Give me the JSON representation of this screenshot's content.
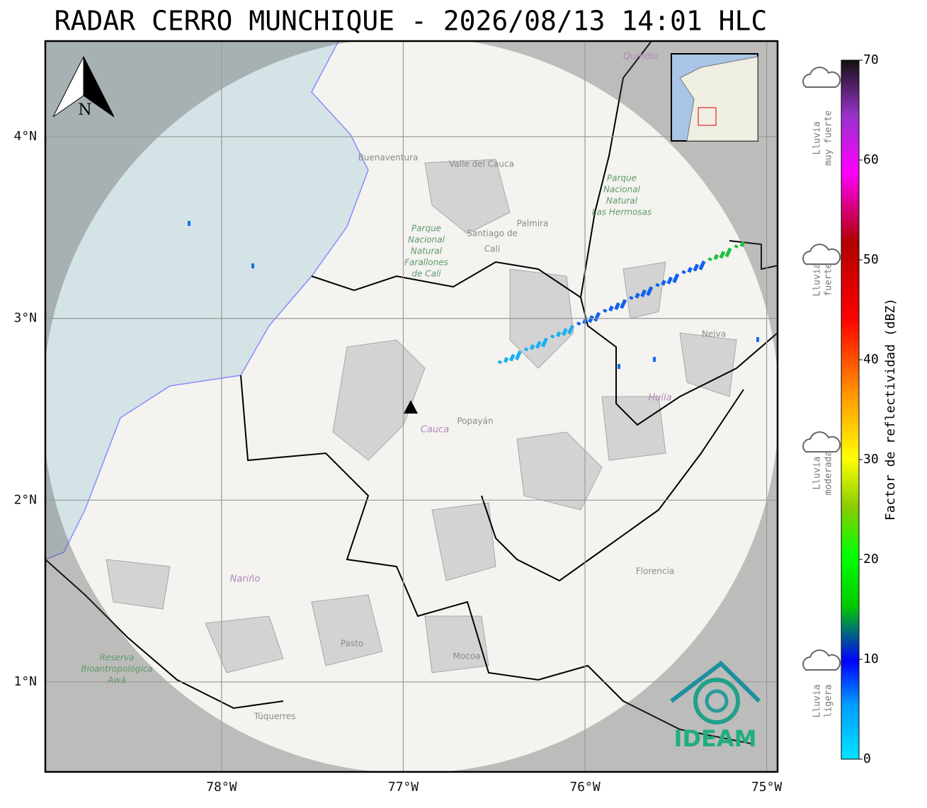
{
  "title": "RADAR CERRO MUNCHIQUE - 2026/08/13 14:01 HLC",
  "map": {
    "xlim": [
      -78.97,
      -74.94
    ],
    "ylim": [
      0.505,
      4.526
    ],
    "xticks": [
      {
        "value": -78,
        "label": "78°W"
      },
      {
        "value": -77,
        "label": "77°W"
      },
      {
        "value": -76,
        "label": "76°W"
      },
      {
        "value": -75,
        "label": "75°W"
      }
    ],
    "yticks": [
      {
        "value": 4,
        "label": "4°N"
      },
      {
        "value": 3,
        "label": "3°N"
      },
      {
        "value": 2,
        "label": "2°N"
      },
      {
        "value": 1,
        "label": "1°N"
      }
    ],
    "place_names": [
      [
        "Buenaventura"
      ],
      [
        "Valle del Cauca"
      ],
      [
        "Santiago de",
        "Cali"
      ],
      [
        "Palmira"
      ],
      [
        "Parque",
        "Nacional",
        "Natural",
        "Farallones",
        "de Cali"
      ],
      [
        "Parque",
        "Nacional",
        "Natural",
        "Las Hermosas"
      ],
      [
        "Quindío"
      ],
      [
        "Neiva"
      ],
      [
        "Huila"
      ],
      [
        "Cauca"
      ],
      [
        "Popayán"
      ],
      [
        "Nariño"
      ],
      [
        "Florencia"
      ],
      [
        "Pasto"
      ],
      [
        "Mocoa"
      ],
      [
        "Túquerres"
      ],
      [
        "Reserva",
        "Bioantropológica",
        "Awá"
      ]
    ]
  },
  "north_label": "N",
  "colorbar": {
    "label": "Factor de reflectividad (dBZ)",
    "ylim": [
      0,
      70
    ],
    "ticks": [
      0,
      10,
      20,
      30,
      40,
      50,
      60,
      70
    ]
  },
  "legend": [
    [
      "Lluvia",
      "muy fuerte"
    ],
    [
      "Lluvia",
      "fuerte"
    ],
    [
      "Lluvia",
      "moderada"
    ],
    [
      "Lluvia",
      "ligera"
    ]
  ],
  "logo": "IDEAM"
}
